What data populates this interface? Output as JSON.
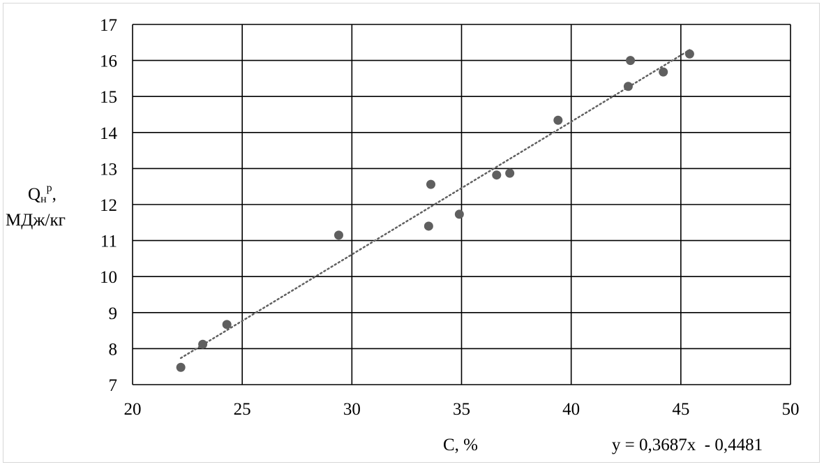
{
  "chart_data": {
    "type": "scatter",
    "xlabel": "C, %",
    "ylabel": {
      "line1_main": "Q",
      "line1_sub": "н",
      "line1_sup": "р",
      "line1_suffix": ",",
      "line2": "МДж/кг"
    },
    "xlim": [
      20,
      50
    ],
    "ylim": [
      7,
      17
    ],
    "x_ticks": [
      20,
      25,
      30,
      35,
      40,
      45,
      50
    ],
    "y_ticks": [
      7,
      8,
      9,
      10,
      11,
      12,
      13,
      14,
      15,
      16,
      17
    ],
    "grid": true,
    "trendline": {
      "type": "linear",
      "slope": 0.3687,
      "intercept": -0.4481,
      "x_range": [
        22.2,
        45.4
      ],
      "equation_label": "y = 0,3687x  - 0,4481"
    },
    "points": [
      {
        "x": 22.2,
        "y": 7.48
      },
      {
        "x": 23.2,
        "y": 8.12
      },
      {
        "x": 24.3,
        "y": 8.67
      },
      {
        "x": 29.4,
        "y": 11.15
      },
      {
        "x": 33.5,
        "y": 11.4
      },
      {
        "x": 33.6,
        "y": 12.56
      },
      {
        "x": 34.9,
        "y": 11.73
      },
      {
        "x": 36.6,
        "y": 12.82
      },
      {
        "x": 37.2,
        "y": 12.87
      },
      {
        "x": 39.4,
        "y": 14.34
      },
      {
        "x": 42.6,
        "y": 15.28
      },
      {
        "x": 42.7,
        "y": 16.0
      },
      {
        "x": 44.2,
        "y": 15.68
      },
      {
        "x": 45.4,
        "y": 16.18
      }
    ],
    "colors": {
      "point": "#5f5f5f",
      "grid": "#000000",
      "trendline": "#606060"
    }
  }
}
